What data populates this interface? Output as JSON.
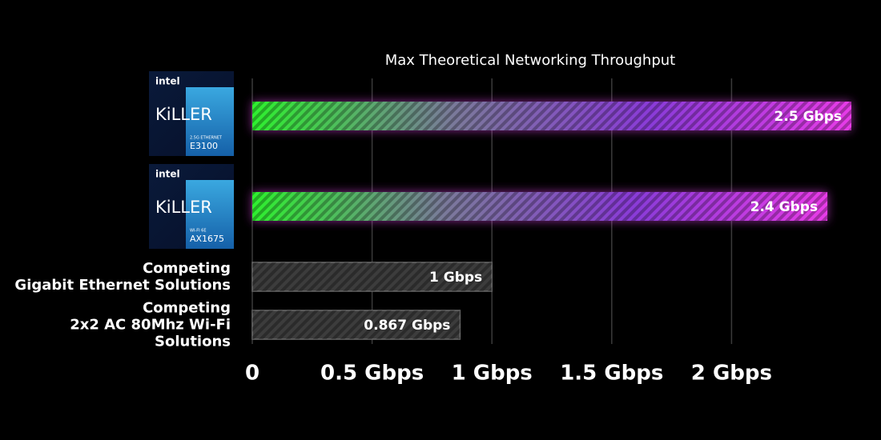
{
  "chart_data": {
    "type": "bar",
    "orientation": "horizontal",
    "title": "Max Theoretical Networking Throughput",
    "categories": [
      null,
      null,
      "Competing\nGigabit Ethernet Solutions",
      "Competing\n2x2 AC 80Mhz Wi-Fi Solutions"
    ],
    "logos": [
      {
        "brand": "intel",
        "name": "KiLLER",
        "line": "2.5G ETHERNET",
        "model": "E3100"
      },
      {
        "brand": "intel",
        "name": "KiLLER",
        "line": "WI-FI 6E",
        "model": "AX1675"
      }
    ],
    "values": [
      2.5,
      2.4,
      1,
      0.867
    ],
    "value_labels": [
      "2.5 Gbps",
      "2.4 Gbps",
      "1 Gbps",
      "0.867 Gbps"
    ],
    "colors": [
      [
        "#2ef02e",
        "#7a7a9a",
        "#8a3ad8",
        "#e83ae8"
      ],
      [
        "#2ef02e",
        "#7a7a9a",
        "#8a3ad8",
        "#e83ae8"
      ],
      [
        "#3c3c3c",
        "#3c3c3c"
      ],
      [
        "#3c3c3c",
        "#3c3c3c"
      ]
    ],
    "xlim": [
      0,
      2.5
    ],
    "xticks": [
      0,
      {
        "value": 0.5,
        "label": "0.5 Gbps"
      },
      {
        "value": 1,
        "label": "1 Gbps"
      },
      {
        "value": 1.5,
        "label": "1.5 Gbps"
      },
      {
        "value": 2,
        "label": "2 Gbps"
      }
    ],
    "grid": true
  }
}
